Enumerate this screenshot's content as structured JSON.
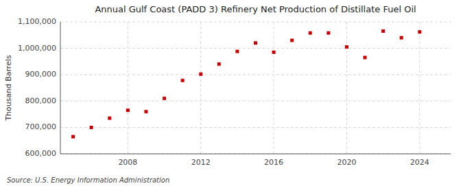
{
  "chart_data": {
    "type": "scatter",
    "title": "Annual Gulf Coast (PADD 3) Refinery Net Production of Distillate Fuel Oil",
    "ylabel": "Thousand Barrels",
    "source": "Source: U.S. Energy Information Administration",
    "x": [
      2005,
      2006,
      2007,
      2008,
      2009,
      2010,
      2011,
      2012,
      2013,
      2014,
      2015,
      2016,
      2017,
      2018,
      2019,
      2020,
      2021,
      2022,
      2023,
      2024
    ],
    "values": [
      665000,
      700000,
      735000,
      765000,
      760000,
      810000,
      878000,
      902000,
      940000,
      988000,
      1020000,
      985000,
      1030000,
      1058000,
      1058000,
      1005000,
      965000,
      1065000,
      1040000,
      1062000
    ],
    "color": "#cc0000",
    "marker": "square",
    "grid": true,
    "xlim": [
      2004.3,
      2025.7
    ],
    "xticks": [
      2008,
      2012,
      2016,
      2020,
      2024
    ],
    "ylim": [
      600000,
      1100000
    ],
    "yticks": [
      {
        "value": 600000,
        "label": "600,000"
      },
      {
        "value": 700000,
        "label": "700,000"
      },
      {
        "value": 800000,
        "label": "800,000"
      },
      {
        "value": 900000,
        "label": "900,000"
      },
      {
        "value": 1000000,
        "label": "1,000,000"
      },
      {
        "value": 1100000,
        "label": "1,100,000"
      }
    ]
  }
}
